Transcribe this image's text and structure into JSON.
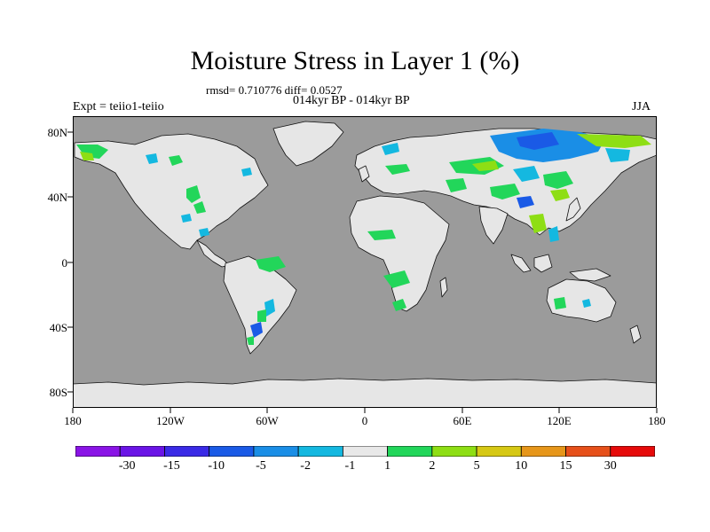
{
  "header": {
    "title": "Moisture Stress in Layer 1 (%)",
    "stats": "rmsd= 0.710776 diff= 0.0527",
    "period": "014kyr BP - 014kyr BP",
    "experiment": "Expt = teiio1-teiio",
    "season": "JJA"
  },
  "axes": {
    "lat_ticks": [
      "80N",
      "40N",
      "0",
      "40S",
      "80S"
    ],
    "lon_ticks": [
      "180",
      "120W",
      "60W",
      "0",
      "60E",
      "120E",
      "180"
    ]
  },
  "legend": {
    "labels": [
      "-30",
      "-15",
      "-10",
      "-5",
      "-2",
      "-1",
      "1",
      "2",
      "5",
      "10",
      "15",
      "30"
    ],
    "colors": [
      "#8a14e6",
      "#6a14e6",
      "#3a2ae6",
      "#1a5ae6",
      "#1a8ee6",
      "#14b8e0",
      "#e8e8e8",
      "#22d65a",
      "#8ede14",
      "#d6c814",
      "#e6961a",
      "#e6501a",
      "#e60a0a"
    ]
  },
  "colors": {
    "ocean": "#9b9b9b",
    "land": "#e6e6e6"
  }
}
